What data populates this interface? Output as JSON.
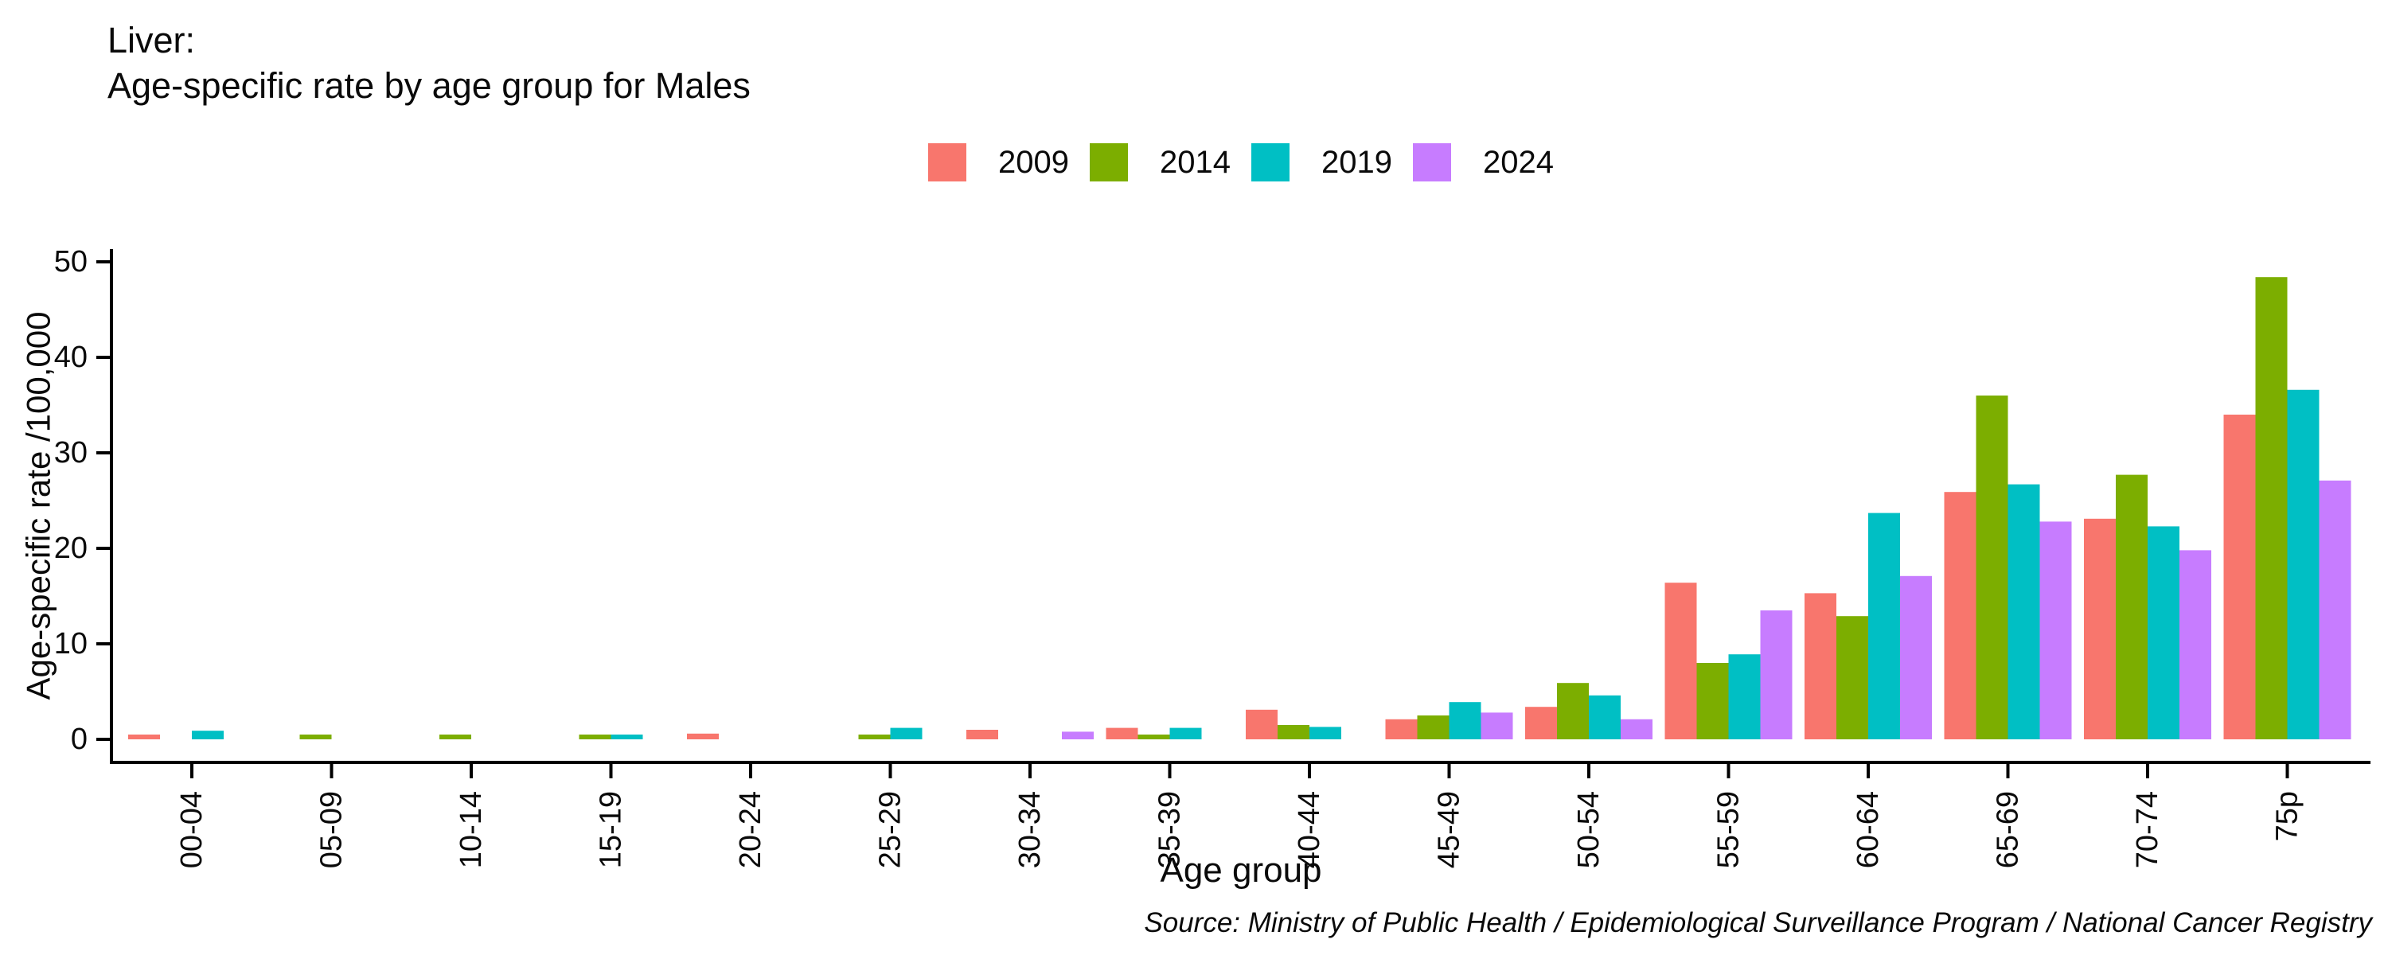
{
  "title": {
    "line1": "Liver:",
    "line2": "Age-specific rate by age group for Males"
  },
  "source": "Source: Ministry of Public Health / Epidemiological Surveillance Program / National Cancer Registry",
  "chart_data": {
    "type": "bar",
    "title": "Liver: Age-specific rate by age group for Males",
    "xlabel": "Age group",
    "ylabel": "Age-specific rate /100,000",
    "ylim": [
      0,
      50
    ],
    "yticks": [
      0,
      10,
      20,
      30,
      40,
      50
    ],
    "grid": false,
    "legend_position": "top-center",
    "background": "#ffffff",
    "axis_color": "#000000",
    "categories": [
      "00-04",
      "05-09",
      "10-14",
      "15-19",
      "20-24",
      "25-29",
      "30-34",
      "35-39",
      "40-44",
      "45-49",
      "50-54",
      "55-59",
      "60-64",
      "65-69",
      "70-74",
      "75p"
    ],
    "series": [
      {
        "name": "2009",
        "color": "#F8766D",
        "values": [
          0.5,
          0,
          0,
          0,
          0.6,
          0,
          1.0,
          1.2,
          3.1,
          2.1,
          3.4,
          16.4,
          15.3,
          25.9,
          23.1,
          34.0
        ]
      },
      {
        "name": "2014",
        "color": "#7CAE00",
        "values": [
          0,
          0.5,
          0.5,
          0.5,
          0,
          0.5,
          0,
          0.5,
          1.5,
          2.5,
          5.9,
          8.0,
          12.9,
          36.0,
          27.7,
          48.4
        ]
      },
      {
        "name": "2019",
        "color": "#00BFC4",
        "values": [
          0.9,
          0,
          0,
          0.5,
          0,
          1.2,
          0,
          1.2,
          1.3,
          3.9,
          4.6,
          8.9,
          23.7,
          26.7,
          22.3,
          36.6
        ]
      },
      {
        "name": "2024",
        "color": "#C77CFF",
        "values": [
          0,
          0,
          0,
          0,
          0,
          0,
          0.8,
          0,
          0,
          2.8,
          2.1,
          13.5,
          17.1,
          22.8,
          19.8,
          27.1
        ]
      }
    ]
  }
}
